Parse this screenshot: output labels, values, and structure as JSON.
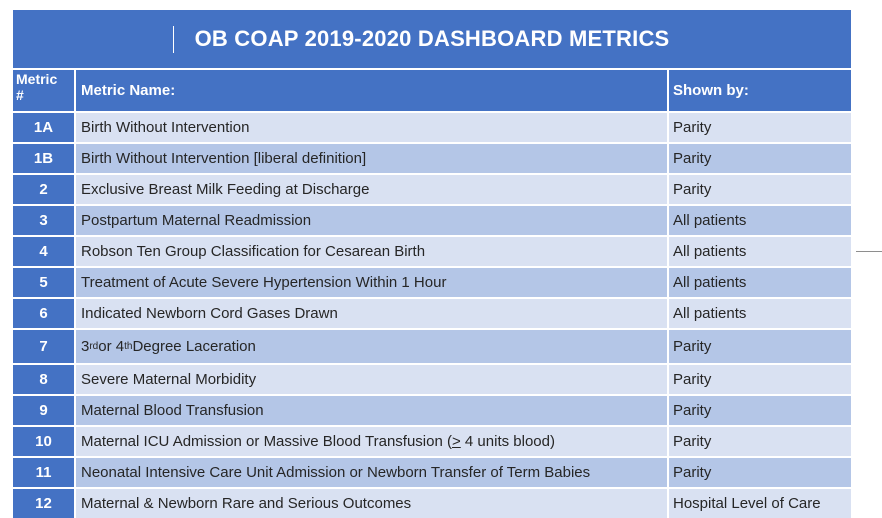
{
  "title": "OB COAP 2019-2020 DASHBOARD METRICS",
  "headers": {
    "number": "Metric\n#",
    "name": "Metric Name:",
    "shown_by": "Shown by:"
  },
  "rows": [
    {
      "number": "1A",
      "name": "Birth Without Intervention",
      "shown_by": "Parity"
    },
    {
      "number": "1B",
      "name": "Birth Without Intervention [liberal definition]",
      "shown_by": "Parity"
    },
    {
      "number": "2",
      "name": "Exclusive Breast Milk Feeding at Discharge",
      "shown_by": "Parity"
    },
    {
      "number": "3",
      "name": "Postpartum Maternal Readmission",
      "shown_by": "All patients"
    },
    {
      "number": "4",
      "name": "Robson Ten Group Classification for Cesarean Birth",
      "shown_by": "All patients"
    },
    {
      "number": "5",
      "name": "Treatment of Acute Severe Hypertension Within 1 Hour",
      "shown_by": "All patients"
    },
    {
      "number": "6",
      "name": "Indicated Newborn Cord Gases Drawn",
      "shown_by": "All patients"
    },
    {
      "number": "7",
      "name_parts": {
        "a": "3",
        "a_sup": "rd",
        "mid": " or 4",
        "b_sup": "th",
        "rest": " Degree Laceration"
      },
      "shown_by": "Parity"
    },
    {
      "number": "8",
      "name": "Severe Maternal Morbidity",
      "shown_by": "Parity"
    },
    {
      "number": "9",
      "name": "Maternal Blood Transfusion",
      "shown_by": "Parity"
    },
    {
      "number": "10",
      "name_parts": {
        "pre": "Maternal ICU Admission or Massive Blood Transfusion (",
        "sym": ">",
        "post": " 4 units blood)"
      },
      "shown_by": "Parity"
    },
    {
      "number": "11",
      "name": "Neonatal Intensive Care Unit Admission or Newborn Transfer of Term Babies",
      "shown_by": "Parity"
    },
    {
      "number": "12",
      "name": "Maternal & Newborn Rare and Serious Outcomes",
      "shown_by": "Hospital Level of Care"
    }
  ]
}
